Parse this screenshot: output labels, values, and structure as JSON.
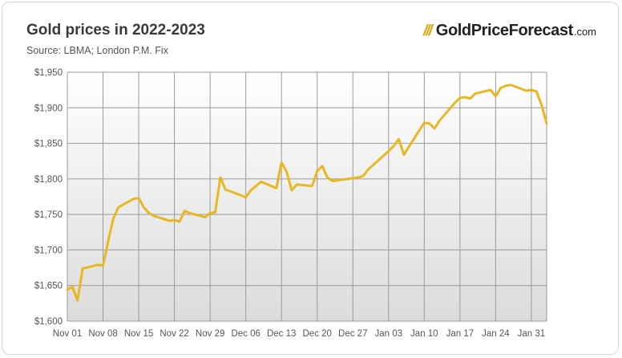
{
  "header": {
    "title": "Gold prices in 2022-2023",
    "subtitle": "Source: LBMA; London P.M. Fix"
  },
  "logo": {
    "mark": "///",
    "name": "GoldPriceForecast",
    "tld": ".com",
    "mark_color": "#d9a80d"
  },
  "colors": {
    "line": "#e7b824",
    "grid": "#9a9a9a",
    "plot_bg_top": "#ffffff",
    "plot_bg_bottom": "#dcdcdc"
  },
  "chart_data": {
    "type": "line",
    "title": "Gold prices in 2022-2023",
    "subtitle": "Source: LBMA; London P.M. Fix",
    "xlabel": "",
    "ylabel": "",
    "grid": true,
    "legend": "none",
    "x_ticks": [
      "Nov 01",
      "Nov 08",
      "Nov 15",
      "Nov 22",
      "Nov 29",
      "Dec 06",
      "Dec 13",
      "Dec 20",
      "Dec 27",
      "Jan 03",
      "Jan 10",
      "Jan 17",
      "Jan 24",
      "Jan 31"
    ],
    "y_ticks": [
      1600,
      1650,
      1700,
      1750,
      1800,
      1850,
      1900,
      1950
    ],
    "y_tick_labels": [
      "$1,600",
      "$1,650",
      "$1,700",
      "$1,750",
      "$1,800",
      "$1,850",
      "$1,900",
      "$1,950"
    ],
    "xlim": [
      "2022-11-01",
      "2023-02-03"
    ],
    "ylim": [
      1600,
      1950
    ],
    "series": [
      {
        "points": [
          [
            "2022-11-01",
            1644
          ],
          [
            "2022-11-02",
            1648
          ],
          [
            "2022-11-03",
            1629
          ],
          [
            "2022-11-04",
            1674
          ],
          [
            "2022-11-07",
            1679
          ],
          [
            "2022-11-08",
            1678
          ],
          [
            "2022-11-09",
            1712
          ],
          [
            "2022-11-10",
            1744
          ],
          [
            "2022-11-11",
            1760
          ],
          [
            "2022-11-14",
            1772
          ],
          [
            "2022-11-15",
            1773
          ],
          [
            "2022-11-16",
            1760
          ],
          [
            "2022-11-17",
            1752
          ],
          [
            "2022-11-18",
            1748
          ],
          [
            "2022-11-21",
            1741
          ],
          [
            "2022-11-22",
            1742
          ],
          [
            "2022-11-23",
            1740
          ],
          [
            "2022-11-24",
            1755
          ],
          [
            "2022-11-25",
            1752
          ],
          [
            "2022-11-28",
            1746
          ],
          [
            "2022-11-29",
            1752
          ],
          [
            "2022-11-30",
            1753
          ],
          [
            "2022-12-01",
            1802
          ],
          [
            "2022-12-02",
            1785
          ],
          [
            "2022-12-05",
            1777
          ],
          [
            "2022-12-06",
            1774
          ],
          [
            "2022-12-07",
            1784
          ],
          [
            "2022-12-08",
            1790
          ],
          [
            "2022-12-09",
            1796
          ],
          [
            "2022-12-12",
            1787
          ],
          [
            "2022-12-13",
            1823
          ],
          [
            "2022-12-14",
            1810
          ],
          [
            "2022-12-15",
            1784
          ],
          [
            "2022-12-16",
            1792
          ],
          [
            "2022-12-19",
            1790
          ],
          [
            "2022-12-20",
            1811
          ],
          [
            "2022-12-21",
            1818
          ],
          [
            "2022-12-22",
            1802
          ],
          [
            "2022-12-23",
            1797
          ],
          [
            "2022-12-28",
            1802
          ],
          [
            "2022-12-29",
            1804
          ],
          [
            "2022-12-30",
            1813
          ],
          [
            "2023-01-03",
            1839
          ],
          [
            "2023-01-04",
            1846
          ],
          [
            "2023-01-05",
            1856
          ],
          [
            "2023-01-06",
            1834
          ],
          [
            "2023-01-09",
            1868
          ],
          [
            "2023-01-10",
            1879
          ],
          [
            "2023-01-11",
            1878
          ],
          [
            "2023-01-12",
            1871
          ],
          [
            "2023-01-13",
            1882
          ],
          [
            "2023-01-16",
            1907
          ],
          [
            "2023-01-17",
            1914
          ],
          [
            "2023-01-18",
            1915
          ],
          [
            "2023-01-19",
            1913
          ],
          [
            "2023-01-20",
            1920
          ],
          [
            "2023-01-23",
            1925
          ],
          [
            "2023-01-24",
            1916
          ],
          [
            "2023-01-25",
            1928
          ],
          [
            "2023-01-26",
            1931
          ],
          [
            "2023-01-27",
            1932
          ],
          [
            "2023-01-30",
            1924
          ],
          [
            "2023-01-31",
            1925
          ],
          [
            "2023-02-01",
            1923
          ],
          [
            "2023-02-02",
            1904
          ],
          [
            "2023-02-03",
            1878
          ]
        ]
      }
    ]
  }
}
